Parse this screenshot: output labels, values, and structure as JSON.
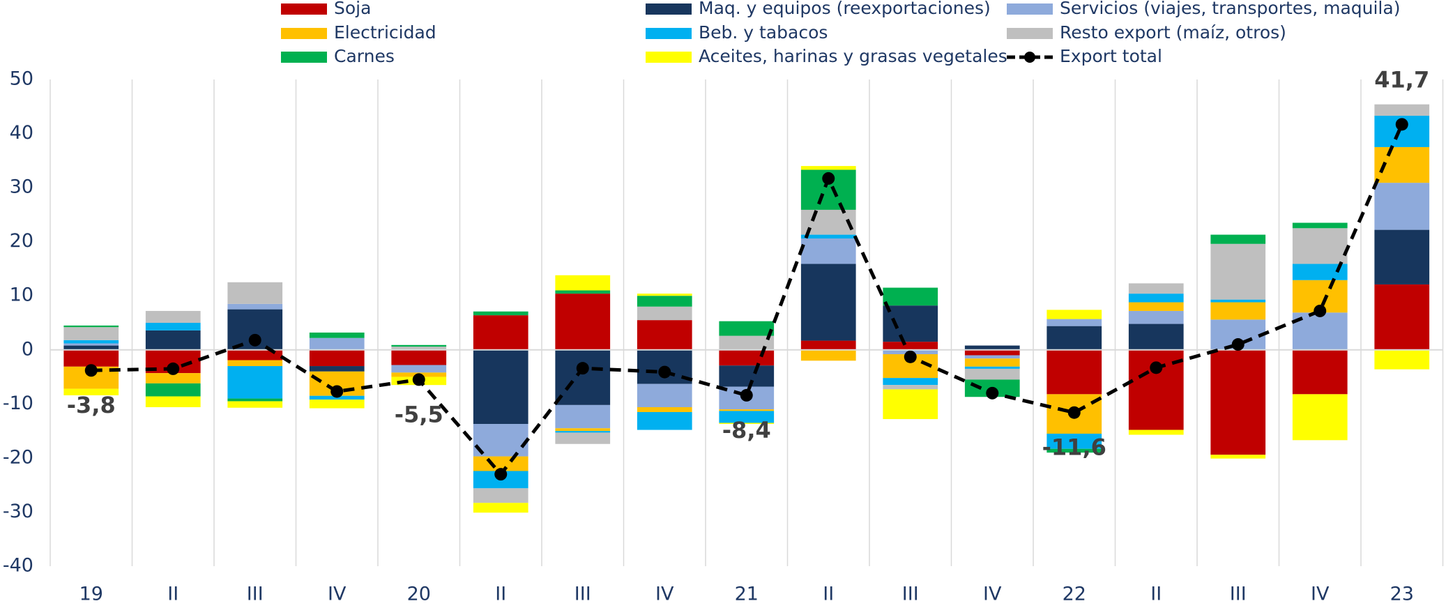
{
  "chart_data": {
    "type": "bar",
    "stacked": true,
    "categories": [
      "19",
      "II",
      "III",
      "IV",
      "20",
      "II",
      "III",
      "IV",
      "21",
      "II",
      "III",
      "IV",
      "22",
      "II",
      "III",
      "IV",
      "23"
    ],
    "series": [
      {
        "name": "Soja",
        "color": "#c00000",
        "values": [
          -3.1,
          -4.3,
          -1.9,
          -3,
          -2.8,
          6.4,
          10.4,
          5.5,
          -2.9,
          1.7,
          1.5,
          -1,
          -8.2,
          -14.8,
          -19.4,
          -8.2,
          12.1
        ]
      },
      {
        "name": "Maq. y equipos (reexportaciones)",
        "color": "#17365d",
        "values": [
          0.8,
          3.6,
          7.5,
          -1,
          0,
          -13.7,
          -10.2,
          -6.3,
          -3.9,
          14.2,
          6.7,
          0.8,
          4.4,
          4.8,
          0,
          0,
          10.1
        ]
      },
      {
        "name": "Servicios (viajes, transportes, maquila)",
        "color": "#8eaadb",
        "values": [
          0.4,
          0,
          1,
          2.2,
          -1.4,
          -6,
          -4.3,
          -4.3,
          -4.2,
          4.7,
          -0.8,
          -0.6,
          1.3,
          2.4,
          5.6,
          6.9,
          8.7
        ]
      },
      {
        "name": "Electricidad",
        "color": "#ffc000",
        "values": [
          -4.1,
          -1.9,
          -1.1,
          -4.5,
          -0.8,
          -2.7,
          -0.5,
          -0.9,
          -0.3,
          -2,
          -4.4,
          -1.5,
          -7.3,
          1.6,
          3.2,
          6,
          6.6
        ]
      },
      {
        "name": "Beb. y tabacos",
        "color": "#00b0f0",
        "values": [
          0.6,
          1.4,
          -6,
          -0.7,
          0,
          -3.2,
          -0.3,
          -3.3,
          -2.2,
          0.7,
          -1.3,
          -0.4,
          -2.8,
          1.6,
          0.5,
          3,
          5.8
        ]
      },
      {
        "name": "Resto export (maíz, otros)",
        "color": "#bfbfbf",
        "values": [
          2.4,
          2.2,
          4,
          0,
          0.6,
          -2.7,
          -2.1,
          2.5,
          2.6,
          4.6,
          -0.8,
          -2,
          0,
          1.9,
          10.3,
          6.6,
          2.1
        ]
      },
      {
        "name": "Carnes",
        "color": "#00b050",
        "values": [
          0.3,
          -2.4,
          -0.5,
          1,
          0.3,
          0.7,
          0.6,
          2,
          2.7,
          7.4,
          3.3,
          -3.2,
          -0.7,
          0,
          1.7,
          1,
          0
        ]
      },
      {
        "name": "Aceites, harinas y grasas vegetales",
        "color": "#ffff00",
        "values": [
          -1.2,
          -2,
          -1.2,
          -1.6,
          -1.5,
          -1.8,
          2.8,
          0.4,
          -0.2,
          0.7,
          -5.5,
          0,
          1.7,
          -0.9,
          -0.7,
          -8.5,
          -3.6
        ]
      }
    ],
    "line_series": {
      "name": "Export total",
      "color": "#000000",
      "values": [
        -3.8,
        -3.5,
        1.8,
        -7.7,
        -5.5,
        -23,
        -3.4,
        -4.1,
        -8.4,
        31.7,
        -1.3,
        -8,
        -11.6,
        -3.3,
        1,
        7.2,
        41.7
      ],
      "value_labels": [
        "-3,8",
        null,
        null,
        null,
        "-5,5",
        null,
        null,
        null,
        "-8,4",
        null,
        null,
        null,
        "-11,6",
        null,
        null,
        null,
        "41,7"
      ]
    },
    "ylim": [
      -40,
      50
    ],
    "yticks": [
      -40,
      -30,
      -20,
      -10,
      0,
      10,
      20,
      30,
      40,
      50
    ]
  }
}
